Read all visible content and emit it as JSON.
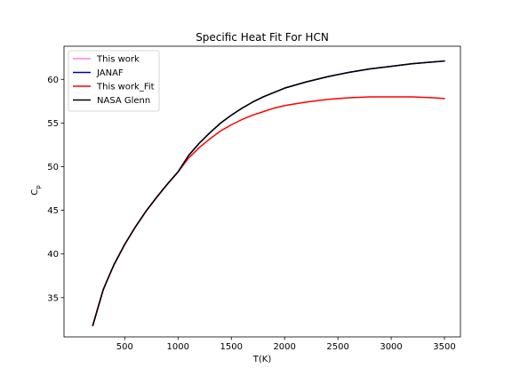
{
  "chart_data": {
    "type": "line",
    "title": "Specific Heat Fit For HCN",
    "xlabel": "T(K)",
    "ylabel": "C",
    "ylabel_subscript": "p",
    "xlim": [
      -70,
      3650
    ],
    "ylim": [
      30.5,
      63.8
    ],
    "xticks": [
      500,
      1000,
      1500,
      2000,
      2500,
      3000,
      3500
    ],
    "yticks": [
      35,
      40,
      45,
      50,
      55,
      60
    ],
    "grid": false,
    "legend_position": "top-left",
    "series": [
      {
        "name": "This work",
        "color": "#ee82ee",
        "x": [
          200,
          250,
          298,
          350,
          400,
          500,
          600,
          700,
          800,
          900,
          1000
        ],
        "y": [
          31.8,
          33.9,
          35.9,
          37.4,
          38.8,
          41.1,
          43.1,
          44.9,
          46.5,
          48.0,
          49.4
        ]
      },
      {
        "name": "JANAF",
        "color": "#0000aa",
        "x": [
          200,
          250,
          298,
          350,
          400,
          500,
          600,
          700,
          800,
          900,
          1000,
          1100,
          1200,
          1300,
          1400,
          1500,
          1600,
          1700,
          1800,
          1900,
          2000,
          2200,
          2400,
          2600,
          2800,
          3000,
          3200,
          3400,
          3500
        ],
        "y": [
          31.8,
          33.9,
          35.9,
          37.4,
          38.8,
          41.1,
          43.1,
          44.9,
          46.5,
          48.0,
          49.4,
          51.3,
          52.7,
          53.9,
          55.0,
          55.9,
          56.7,
          57.4,
          58.0,
          58.5,
          59.0,
          59.7,
          60.3,
          60.8,
          61.2,
          61.5,
          61.8,
          62.0,
          62.1
        ]
      },
      {
        "name": "This work_Fit",
        "color": "#ff0000",
        "x": [
          200,
          250,
          298,
          350,
          400,
          500,
          600,
          700,
          800,
          900,
          1000,
          1100,
          1200,
          1300,
          1400,
          1500,
          1600,
          1700,
          1800,
          1900,
          2000,
          2200,
          2400,
          2600,
          2800,
          3000,
          3200,
          3400,
          3500
        ],
        "y": [
          31.8,
          33.9,
          35.9,
          37.4,
          38.8,
          41.1,
          43.1,
          44.9,
          46.5,
          48.0,
          49.4,
          51.0,
          52.2,
          53.2,
          54.1,
          54.8,
          55.4,
          55.9,
          56.3,
          56.7,
          57.0,
          57.4,
          57.7,
          57.9,
          58.0,
          58.0,
          58.0,
          57.9,
          57.8
        ]
      },
      {
        "name": "NASA Glenn",
        "color": "#000000",
        "x": [
          200,
          250,
          298,
          350,
          400,
          500,
          600,
          700,
          800,
          900,
          1000,
          1100,
          1200,
          1300,
          1400,
          1500,
          1600,
          1700,
          1800,
          1900,
          2000,
          2200,
          2400,
          2600,
          2800,
          3000,
          3200,
          3400,
          3500
        ],
        "y": [
          31.8,
          33.9,
          35.9,
          37.4,
          38.8,
          41.1,
          43.1,
          44.9,
          46.5,
          48.0,
          49.4,
          51.3,
          52.7,
          53.9,
          55.0,
          55.9,
          56.7,
          57.4,
          58.0,
          58.5,
          59.0,
          59.7,
          60.3,
          60.8,
          61.2,
          61.5,
          61.8,
          62.0,
          62.1
        ]
      }
    ]
  }
}
